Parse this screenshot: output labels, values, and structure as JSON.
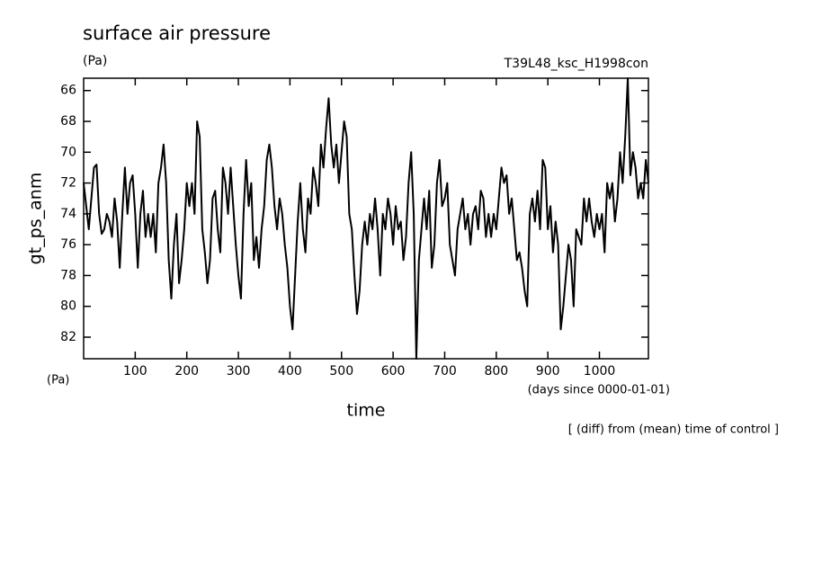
{
  "chart_data": {
    "type": "line",
    "title": "surface air pressure",
    "units_top": "(Pa)",
    "experiment": "T39L48_ksc_H1998con",
    "y_label": "gt_ps_anm",
    "units_bottom": "(Pa)",
    "x_units": "(days since 0000-01-01)",
    "x_label": "time",
    "note": "[ (diff) from (mean) time of control ]",
    "xlim": [
      0,
      1095
    ],
    "ylim": [
      83.4,
      65.2
    ],
    "xticks": [
      100,
      200,
      300,
      400,
      500,
      600,
      700,
      800,
      900,
      1000
    ],
    "yticks": [
      66,
      68,
      70,
      72,
      74,
      76,
      78,
      80,
      82
    ],
    "color": "#000000",
    "x": [
      0,
      5,
      10,
      15,
      20,
      25,
      30,
      35,
      40,
      45,
      50,
      55,
      60,
      65,
      70,
      75,
      80,
      85,
      90,
      95,
      100,
      105,
      110,
      115,
      120,
      125,
      130,
      135,
      140,
      145,
      150,
      155,
      160,
      165,
      170,
      175,
      180,
      185,
      190,
      195,
      200,
      205,
      210,
      215,
      220,
      225,
      230,
      235,
      240,
      245,
      250,
      255,
      260,
      265,
      270,
      275,
      280,
      285,
      290,
      295,
      300,
      305,
      310,
      315,
      320,
      325,
      330,
      335,
      340,
      345,
      350,
      355,
      360,
      365,
      370,
      375,
      380,
      385,
      390,
      395,
      400,
      405,
      410,
      415,
      420,
      425,
      430,
      435,
      440,
      445,
      450,
      455,
      460,
      465,
      470,
      475,
      480,
      485,
      490,
      495,
      500,
      505,
      510,
      515,
      520,
      525,
      530,
      535,
      540,
      545,
      550,
      555,
      560,
      565,
      570,
      575,
      580,
      585,
      590,
      595,
      600,
      605,
      610,
      615,
      620,
      625,
      630,
      635,
      640,
      645,
      650,
      655,
      660,
      665,
      670,
      675,
      680,
      685,
      690,
      695,
      700,
      705,
      710,
      715,
      720,
      725,
      730,
      735,
      740,
      745,
      750,
      755,
      760,
      765,
      770,
      775,
      780,
      785,
      790,
      795,
      800,
      805,
      810,
      815,
      820,
      825,
      830,
      835,
      840,
      845,
      850,
      855,
      860,
      865,
      870,
      875,
      880,
      885,
      890,
      895,
      900,
      905,
      910,
      915,
      920,
      925,
      930,
      935,
      940,
      945,
      950,
      955,
      960,
      965,
      970,
      975,
      980,
      985,
      990,
      995,
      1000,
      1005,
      1010,
      1015,
      1020,
      1025,
      1030,
      1035,
      1040,
      1045,
      1050,
      1055,
      1060,
      1065,
      1070,
      1075,
      1080,
      1085,
      1090,
      1095
    ],
    "values": [
      72,
      73.5,
      75,
      73,
      71,
      70.8,
      74,
      75.3,
      75,
      74,
      74.5,
      75.5,
      73,
      74.5,
      77.5,
      74,
      71,
      74,
      72,
      71.5,
      74,
      77.5,
      74,
      72.5,
      75.5,
      74,
      75.5,
      74,
      76.5,
      72,
      71,
      69.5,
      72,
      77,
      79.5,
      76,
      74,
      78.5,
      77,
      75,
      72,
      73.5,
      72,
      74,
      68,
      69,
      75,
      76.5,
      78.5,
      77,
      73,
      72.5,
      75,
      76.5,
      71,
      72,
      74,
      71,
      73.5,
      76,
      78,
      79.5,
      74,
      70.5,
      73.5,
      72,
      77,
      75.5,
      77.5,
      75,
      73.5,
      70.5,
      69.5,
      71,
      73.5,
      75,
      73,
      74,
      76,
      77.5,
      80,
      81.5,
      78,
      74.5,
      72,
      75,
      76.5,
      73,
      74,
      71,
      72,
      73.5,
      69.5,
      71,
      68.5,
      66.5,
      69.5,
      71,
      69.5,
      72,
      70,
      68,
      69,
      74,
      75,
      78,
      80.5,
      79,
      76,
      74.5,
      76,
      74,
      75,
      73,
      75,
      78,
      74,
      75,
      73,
      74,
      76,
      73.5,
      75,
      74.5,
      77,
      75.5,
      72,
      70,
      74,
      83.4,
      77,
      75,
      73,
      75,
      72.5,
      77.5,
      76,
      72,
      70.5,
      73.5,
      73,
      72,
      76,
      77,
      78,
      75,
      74,
      73,
      75,
      74,
      76,
      74,
      73.5,
      75,
      72.5,
      73,
      75.5,
      74,
      75.5,
      74,
      75,
      73,
      71,
      72,
      71.5,
      74,
      73,
      75,
      77,
      76.5,
      77.5,
      79,
      80,
      74,
      73,
      74.5,
      72.5,
      75,
      70.5,
      71,
      75,
      73.5,
      76.5,
      74.5,
      76,
      81.5,
      80,
      78,
      76,
      77,
      80,
      75,
      75.5,
      76,
      73,
      74.5,
      73,
      74.5,
      75.5,
      74,
      75,
      74,
      76.5,
      72,
      73,
      72,
      74.5,
      73,
      70,
      72,
      69,
      65.2,
      71.5,
      70,
      71,
      73,
      72,
      73,
      70.5,
      72
    ]
  }
}
